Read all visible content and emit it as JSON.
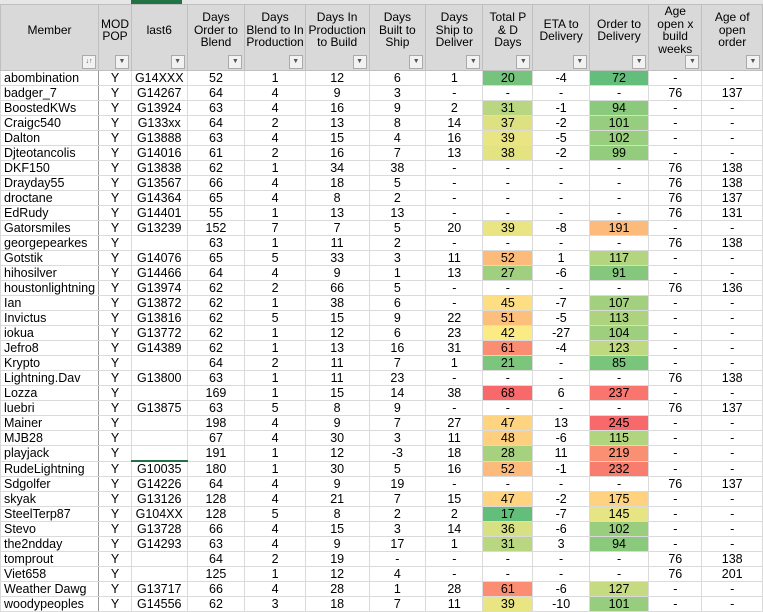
{
  "headers": [
    "Member",
    "MOD POP",
    "last6",
    "Days Order to Blend",
    "Days Blend to In Production",
    "Days In Production to Build",
    "Days Built to Ship",
    "Days Ship to Deliver",
    "Total P & D Days",
    "ETA to Delivery",
    "Order to Delivery",
    "Age open x build weeks",
    "Age of open order"
  ],
  "filter_icons": [
    "sort-filter",
    "dropdown",
    "dropdown",
    "dropdown",
    "dropdown",
    "dropdown",
    "dropdown",
    "dropdown",
    "dropdown",
    "dropdown",
    "dropdown",
    "dropdown",
    "dropdown"
  ],
  "rows": [
    [
      "abombination",
      "Y",
      "G14XXX",
      "52",
      "1",
      "12",
      "6",
      "1",
      "20",
      "-4",
      "72",
      "-",
      "-"
    ],
    [
      "badger_7",
      "Y",
      "G14267",
      "64",
      "4",
      "9",
      "3",
      "-",
      "-",
      "-",
      "-",
      "76",
      "137"
    ],
    [
      "BoostedKWs",
      "Y",
      "G13924",
      "63",
      "4",
      "16",
      "9",
      "2",
      "31",
      "-1",
      "94",
      "-",
      "-"
    ],
    [
      "Craigc540",
      "Y",
      "G133xx",
      "64",
      "2",
      "13",
      "8",
      "14",
      "37",
      "-2",
      "101",
      "-",
      "-"
    ],
    [
      "Dalton",
      "Y",
      "G13888",
      "63",
      "4",
      "15",
      "4",
      "16",
      "39",
      "-5",
      "102",
      "-",
      "-"
    ],
    [
      "Djteotancolis",
      "Y",
      "G14016",
      "61",
      "2",
      "16",
      "7",
      "13",
      "38",
      "-2",
      "99",
      "-",
      "-"
    ],
    [
      "DKF150",
      "Y",
      "G13838",
      "62",
      "1",
      "34",
      "38",
      "-",
      "-",
      "-",
      "-",
      "76",
      "138"
    ],
    [
      "Drayday55",
      "Y",
      "G13567",
      "66",
      "4",
      "18",
      "5",
      "-",
      "-",
      "-",
      "-",
      "76",
      "138"
    ],
    [
      "droctane",
      "Y",
      "G14364",
      "65",
      "4",
      "8",
      "2",
      "-",
      "-",
      "-",
      "-",
      "76",
      "137"
    ],
    [
      "EdRudy",
      "Y",
      "G14401",
      "55",
      "1",
      "13",
      "13",
      "-",
      "-",
      "-",
      "-",
      "76",
      "131"
    ],
    [
      "Gatorsmiles",
      "Y",
      "G13239",
      "152",
      "7",
      "7",
      "5",
      "20",
      "39",
      "-8",
      "191",
      "-",
      "-"
    ],
    [
      "georgepearkes",
      "Y",
      "",
      "63",
      "1",
      "11",
      "2",
      "-",
      "-",
      "-",
      "-",
      "76",
      "138"
    ],
    [
      "Gotstik",
      "Y",
      "G14076",
      "65",
      "5",
      "33",
      "3",
      "11",
      "52",
      "1",
      "117",
      "-",
      "-"
    ],
    [
      "hihosilver",
      "Y",
      "G14466",
      "64",
      "4",
      "9",
      "1",
      "13",
      "27",
      "-6",
      "91",
      "-",
      "-"
    ],
    [
      "houstonlightning",
      "Y",
      "G13974",
      "62",
      "2",
      "66",
      "5",
      "-",
      "-",
      "-",
      "-",
      "76",
      "136"
    ],
    [
      "Ian",
      "Y",
      "G13872",
      "62",
      "1",
      "38",
      "6",
      "-",
      "45",
      "-7",
      "107",
      "-",
      "-"
    ],
    [
      "Invictus",
      "Y",
      "G13816",
      "62",
      "5",
      "15",
      "9",
      "22",
      "51",
      "-5",
      "113",
      "-",
      "-"
    ],
    [
      "iokua",
      "Y",
      "G13772",
      "62",
      "1",
      "12",
      "6",
      "23",
      "42",
      "-27",
      "104",
      "-",
      "-"
    ],
    [
      "Jefro8",
      "Y",
      "G14389",
      "62",
      "1",
      "13",
      "16",
      "31",
      "61",
      "-4",
      "123",
      "-",
      "-"
    ],
    [
      "Krypto",
      "Y",
      "",
      "64",
      "2",
      "11",
      "7",
      "1",
      "21",
      "-",
      "85",
      "-",
      "-"
    ],
    [
      "Lightning.Dav",
      "Y",
      "G13800",
      "63",
      "1",
      "11",
      "23",
      "-",
      "-",
      "-",
      "-",
      "76",
      "138"
    ],
    [
      "Lozza",
      "Y",
      "",
      "169",
      "1",
      "15",
      "14",
      "38",
      "68",
      "6",
      "237",
      "-",
      "-"
    ],
    [
      "luebri",
      "Y",
      "G13875",
      "63",
      "5",
      "8",
      "9",
      "-",
      "-",
      "-",
      "-",
      "76",
      "137"
    ],
    [
      "Mainer",
      "Y",
      "",
      "198",
      "4",
      "9",
      "7",
      "27",
      "47",
      "13",
      "245",
      "-",
      "-"
    ],
    [
      "MJB28",
      "Y",
      "",
      "67",
      "4",
      "30",
      "3",
      "11",
      "48",
      "-6",
      "115",
      "-",
      "-"
    ],
    [
      "playjack",
      "Y",
      "",
      "191",
      "1",
      "12",
      "-3",
      "18",
      "28",
      "11",
      "219",
      "-",
      "-"
    ],
    [
      "RudeLightning",
      "Y",
      "G10035",
      "180",
      "1",
      "30",
      "5",
      "16",
      "52",
      "-1",
      "232",
      "-",
      "-"
    ],
    [
      "Sdgolfer",
      "Y",
      "G14226",
      "64",
      "4",
      "9",
      "19",
      "-",
      "-",
      "-",
      "-",
      "76",
      "137"
    ],
    [
      "skyak",
      "Y",
      "G13126",
      "128",
      "4",
      "21",
      "7",
      "15",
      "47",
      "-2",
      "175",
      "-",
      "-"
    ],
    [
      "SteelTerp87",
      "Y",
      "G104XX",
      "128",
      "5",
      "8",
      "2",
      "2",
      "17",
      "-7",
      "145",
      "-",
      "-"
    ],
    [
      "Stevo",
      "Y",
      "G13728",
      "66",
      "4",
      "15",
      "3",
      "14",
      "36",
      "-6",
      "102",
      "-",
      "-"
    ],
    [
      "the2ndday",
      "Y",
      "G14293",
      "63",
      "4",
      "9",
      "17",
      "1",
      "31",
      "3",
      "94",
      "-",
      "-"
    ],
    [
      "tomprout",
      "Y",
      "",
      "64",
      "2",
      "19",
      "-",
      "-",
      "-",
      "-",
      "-",
      "76",
      "138"
    ],
    [
      "Viet658",
      "Y",
      "",
      "125",
      "1",
      "12",
      "4",
      "-",
      "-",
      "-",
      "-",
      "76",
      "201"
    ],
    [
      "Weather Dawg",
      "Y",
      "G13717",
      "66",
      "4",
      "28",
      "1",
      "28",
      "61",
      "-6",
      "127",
      "-",
      "-"
    ],
    [
      "woodypeoples",
      "Y",
      "G14556",
      "62",
      "3",
      "18",
      "7",
      "11",
      "39",
      "-10",
      "101",
      "-",
      "-"
    ]
  ],
  "color_scale": {
    "low": "#63BE7B",
    "mid": "#FFEB84",
    "high": "#F8696B"
  }
}
